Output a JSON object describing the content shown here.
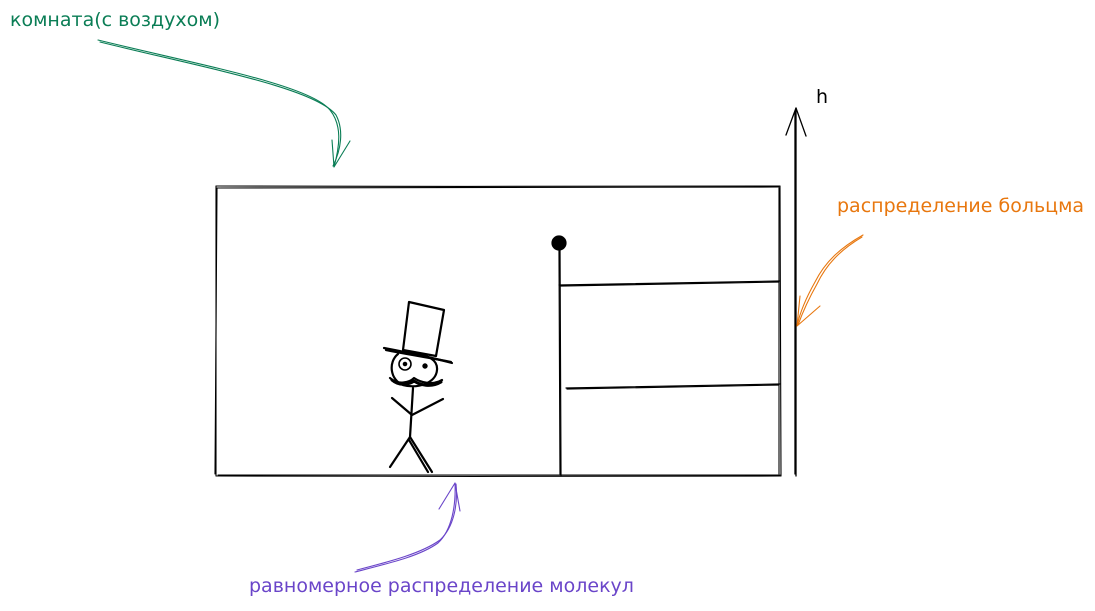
{
  "labels": {
    "room": "комната(с воздухом)",
    "boltzmann": "распределение больцма",
    "uniform": "равномерное распределение молекул",
    "height_axis": "h"
  },
  "colors": {
    "room": "#0a7d55",
    "boltzmann": "#e8770e",
    "uniform": "#6a45c9",
    "ink": "#000000",
    "background": "#ffffff"
  }
}
